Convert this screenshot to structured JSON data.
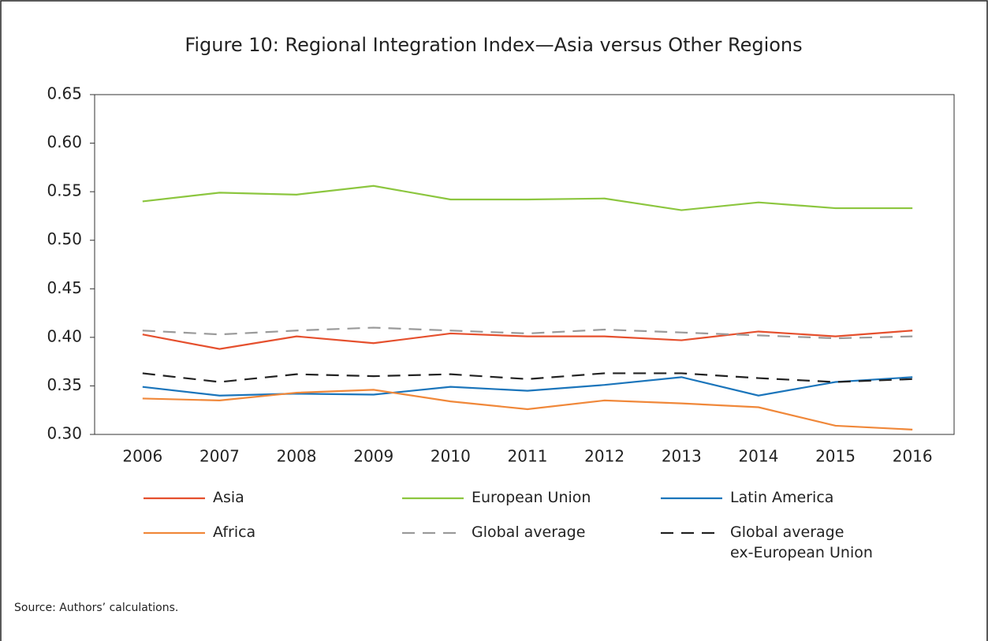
{
  "chart_data": {
    "type": "line",
    "title": "Figure 10: Regional Integration Index—Asia versus Other Regions",
    "source": "Source: Authors’ calculations.",
    "categories": [
      "2006",
      "2007",
      "2008",
      "2009",
      "2010",
      "2011",
      "2012",
      "2013",
      "2014",
      "2015",
      "2016"
    ],
    "series": [
      {
        "name": "Asia",
        "color": "#e5502e",
        "style": "solid",
        "values": [
          0.403,
          0.388,
          0.401,
          0.394,
          0.404,
          0.401,
          0.401,
          0.397,
          0.406,
          0.401,
          0.407
        ]
      },
      {
        "name": "European Union",
        "color": "#8cc63f",
        "style": "solid",
        "values": [
          0.54,
          0.549,
          0.547,
          0.556,
          0.542,
          0.542,
          0.543,
          0.531,
          0.539,
          0.533,
          0.533
        ]
      },
      {
        "name": "Latin America",
        "color": "#1b75bb",
        "style": "solid",
        "values": [
          0.349,
          0.34,
          0.342,
          0.341,
          0.349,
          0.345,
          0.351,
          0.359,
          0.34,
          0.354,
          0.359
        ]
      },
      {
        "name": "Africa",
        "color": "#f0883a",
        "style": "solid",
        "values": [
          0.337,
          0.335,
          0.343,
          0.346,
          0.334,
          0.326,
          0.335,
          0.332,
          0.328,
          0.309,
          0.305
        ]
      },
      {
        "name": "Global average",
        "color": "#9a9a9a",
        "style": "dashed",
        "values": [
          0.407,
          0.403,
          0.407,
          0.41,
          0.407,
          0.404,
          0.408,
          0.405,
          0.402,
          0.399,
          0.401
        ]
      },
      {
        "name": "Global average\nex-European Union",
        "color": "#222222",
        "style": "dashed",
        "values": [
          0.363,
          0.354,
          0.362,
          0.36,
          0.362,
          0.357,
          0.363,
          0.363,
          0.358,
          0.354,
          0.357
        ]
      }
    ],
    "ylim": [
      0.3,
      0.65
    ],
    "yticks": [
      {
        "value": 0.3,
        "label": "0.30"
      },
      0.35,
      {
        "value": 0.4,
        "label": "0.40"
      },
      0.45,
      {
        "value": 0.5,
        "label": "0.50"
      },
      0.55,
      {
        "value": 0.6,
        "label": "0.60"
      },
      0.65
    ],
    "grid": false
  }
}
